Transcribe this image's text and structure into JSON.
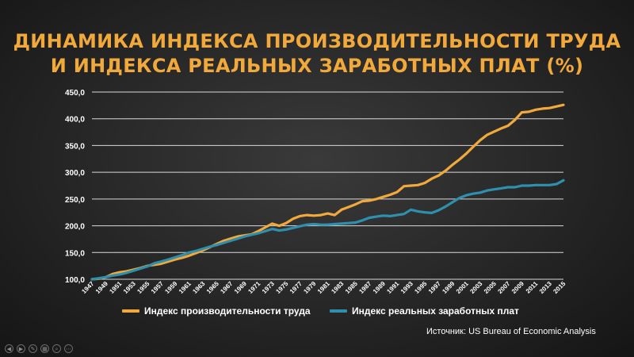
{
  "title_line1": "ДИНАМИКА ИНДЕКСА ПРОИЗВОДИТЕЛЬНОСТИ ТРУДА",
  "title_line2": "И ИНДЕКСА РЕАЛЬНЫХ ЗАРАБОТНЫХ ПЛАТ (%)",
  "source": "Источник: US Bureau of Economic Analysis",
  "colors": {
    "productivity": "#f2a93b",
    "wages": "#2f8fae",
    "grid": "#d9d9d9",
    "text": "#ffffff"
  },
  "nav_icons": [
    "prev-icon",
    "next-icon",
    "pen-icon",
    "slides-icon",
    "zoom-icon",
    "more-icon"
  ],
  "nav_glyphs": [
    "◀",
    "▶",
    "✎",
    "▦",
    "⌕",
    "⋯"
  ],
  "chart_data": {
    "type": "line",
    "title": "ДИНАМИКА ИНДЕКСА ПРОИЗВОДИТЕЛЬНОСТИ ТРУДА И ИНДЕКСА РЕАЛЬНЫХ ЗАРАБОТНЫХ ПЛАТ (%)",
    "ylim": [
      100,
      450
    ],
    "y_ticks": [
      "100,0",
      "150,0",
      "200,0",
      "250,0",
      "300,0",
      "350,0",
      "400,0",
      "450,0"
    ],
    "grid": true,
    "legend_position": "bottom",
    "x": [
      1947,
      1948,
      1949,
      1950,
      1951,
      1952,
      1953,
      1954,
      1955,
      1956,
      1957,
      1958,
      1959,
      1960,
      1961,
      1962,
      1963,
      1964,
      1965,
      1966,
      1967,
      1968,
      1969,
      1970,
      1971,
      1972,
      1973,
      1974,
      1975,
      1976,
      1977,
      1978,
      1979,
      1980,
      1981,
      1982,
      1983,
      1984,
      1985,
      1986,
      1987,
      1988,
      1989,
      1990,
      1991,
      1992,
      1993,
      1994,
      1995,
      1996,
      1997,
      1998,
      1999,
      2000,
      2001,
      2002,
      2003,
      2004,
      2005,
      2006,
      2007,
      2008,
      2009,
      2010,
      2011,
      2012,
      2013,
      2014,
      2015
    ],
    "x_tick_labels": [
      "1947",
      "1949",
      "1951",
      "1953",
      "1955",
      "1957",
      "1959",
      "1961",
      "1963",
      "1965",
      "1967",
      "1969",
      "1971",
      "1973",
      "1975",
      "1977",
      "1979",
      "1981",
      "1983",
      "1985",
      "1987",
      "1989",
      "1991",
      "1993",
      "1995",
      "1997",
      "1999",
      "2001",
      "2003",
      "2005",
      "2007",
      "2009",
      "2011",
      "2013",
      "2015"
    ],
    "series": [
      {
        "name": "Индекс производительности труда",
        "color": "#f2a93b",
        "values": [
          100,
          101,
          104,
          110,
          113,
          115,
          118,
          121,
          125,
          127,
          129,
          133,
          137,
          140,
          144,
          149,
          154,
          160,
          166,
          172,
          176,
          180,
          182,
          184,
          190,
          197,
          204,
          200,
          205,
          213,
          218,
          220,
          219,
          220,
          223,
          220,
          230,
          235,
          240,
          246,
          247,
          250,
          254,
          258,
          263,
          274,
          275,
          276,
          280,
          288,
          294,
          303,
          314,
          324,
          335,
          348,
          360,
          370,
          376,
          382,
          387,
          398,
          412,
          413,
          417,
          419,
          420,
          423,
          426
        ]
      },
      {
        "name": "Индекс реальных заработных плат",
        "color": "#2f8fae",
        "values": [
          100,
          102,
          104,
          107,
          109,
          112,
          116,
          120,
          124,
          130,
          133,
          137,
          141,
          145,
          150,
          153,
          157,
          161,
          164,
          168,
          172,
          176,
          180,
          183,
          186,
          190,
          194,
          191,
          193,
          196,
          199,
          202,
          203,
          202,
          202,
          203,
          204,
          205,
          206,
          210,
          215,
          217,
          219,
          218,
          220,
          222,
          230,
          227,
          225,
          224,
          229,
          236,
          244,
          252,
          257,
          260,
          262,
          266,
          268,
          270,
          272,
          272,
          275,
          275,
          276,
          276,
          276,
          278,
          285
        ]
      }
    ]
  }
}
